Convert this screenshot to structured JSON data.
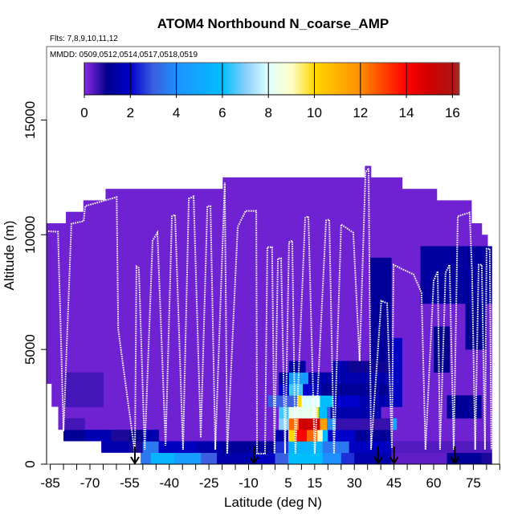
{
  "chart_data": {
    "type": "heatmap",
    "title": "ATOM4 Northbound N_coarse_AMP",
    "subtitle_flights": "Flts: 7,8,9,10,11,12",
    "subtitle_dates": "MMDD: 0509,0512,0514,0517,0518,0519",
    "xlabel": "Latitude (deg N)",
    "ylabel": "Altitude (m)",
    "xlim": [
      -86.4,
      84.9
    ],
    "ylim": [
      0,
      18200
    ],
    "xticks": [
      -85,
      -80,
      -75,
      -70,
      -65,
      -60,
      -55,
      -50,
      -45,
      -40,
      -35,
      -30,
      -25,
      -20,
      -15,
      -10,
      -5,
      0,
      5,
      10,
      15,
      20,
      25,
      30,
      35,
      40,
      45,
      50,
      55,
      60,
      65,
      70,
      75,
      80,
      85
    ],
    "xtick_labels": [
      "-85",
      "-70",
      "-55",
      "-40",
      "-25",
      "-10",
      "5",
      "15",
      "30",
      "45",
      "60",
      "75"
    ],
    "xtick_label_values": [
      -85,
      -70,
      -55,
      -40,
      -25,
      -10,
      5,
      15,
      30,
      45,
      60,
      75
    ],
    "yticks": [
      0,
      5000,
      10000,
      15000
    ],
    "ytick_labels": [
      "0",
      "5000",
      "10000",
      "15000"
    ],
    "colorbar": {
      "range": [
        0,
        16.3
      ],
      "ticks": [
        0,
        2,
        4,
        6,
        8,
        10,
        12,
        14,
        16
      ],
      "tick_labels": [
        "0",
        "2",
        "4",
        "6",
        "8",
        "10",
        "12",
        "14",
        "16"
      ],
      "placement": "top-inset"
    },
    "colorscale": [
      [
        0,
        "#8a2be2"
      ],
      [
        1,
        "#00008b"
      ],
      [
        2,
        "#0000cd"
      ],
      [
        3,
        "#3a5fe0"
      ],
      [
        4,
        "#1e90ff"
      ],
      [
        5,
        "#10a8ff"
      ],
      [
        6,
        "#00bfff"
      ],
      [
        7,
        "#87cefa"
      ],
      [
        8,
        "#e0ffff"
      ],
      [
        9,
        "#ffffc8"
      ],
      [
        10,
        "#ffd700"
      ],
      [
        12,
        "#ff8c00"
      ],
      [
        13.5,
        "#ff2000"
      ],
      [
        14,
        "#ff0000"
      ],
      [
        15,
        "#d00000"
      ],
      [
        16,
        "#b01515"
      ],
      [
        16.3,
        "#a52a2a"
      ]
    ],
    "default_value": 0.2,
    "coverage": [
      [
        -86.4,
        -84.5,
        3500,
        10500
      ],
      [
        -84.5,
        -82,
        2500,
        10500
      ],
      [
        -82,
        -80,
        1500,
        10500
      ],
      [
        -80,
        -79.1,
        1000,
        10500
      ],
      [
        -79.1,
        -72.5,
        1000,
        11000
      ],
      [
        -72.5,
        -65.7,
        1000,
        11500
      ],
      [
        -65.7,
        -64.1,
        500,
        11500
      ],
      [
        -64.1,
        -50.8,
        500,
        12000
      ],
      [
        -50.8,
        -19.8,
        0,
        12000
      ],
      [
        -19.8,
        34,
        0,
        12500
      ],
      [
        34,
        36.3,
        0,
        13000
      ],
      [
        36.3,
        48.1,
        0,
        12500
      ],
      [
        48.1,
        61.2,
        0,
        12000
      ],
      [
        61.2,
        74.3,
        0,
        11500
      ],
      [
        74.3,
        78.2,
        0,
        10500
      ],
      [
        78.2,
        80.4,
        0,
        10000
      ],
      [
        80.4,
        82,
        0,
        9500
      ]
    ],
    "cells": [
      [
        -50.8,
        -47,
        0,
        500,
        3.5
      ],
      [
        -47,
        -38,
        0,
        500,
        5.5
      ],
      [
        -38,
        -28,
        0,
        500,
        4.5
      ],
      [
        -28,
        -22,
        0,
        500,
        3
      ],
      [
        -22,
        -10,
        0,
        500,
        1.5
      ],
      [
        -10,
        0,
        0,
        500,
        1.8
      ],
      [
        0,
        5,
        0,
        500,
        3
      ],
      [
        5,
        18,
        0,
        500,
        6
      ],
      [
        18,
        25,
        0,
        500,
        4
      ],
      [
        25,
        30,
        0,
        500,
        2.5
      ],
      [
        30,
        44,
        0,
        500,
        1.5
      ],
      [
        44,
        65,
        0,
        500,
        0.3
      ],
      [
        65,
        78,
        0,
        500,
        1.2
      ],
      [
        78,
        82,
        0,
        500,
        0.8
      ],
      [
        -65.7,
        -55,
        500,
        1000,
        1.5
      ],
      [
        -55,
        -50,
        500,
        1000,
        0.8
      ],
      [
        -50,
        -44,
        500,
        1000,
        3.5
      ],
      [
        -44,
        -30,
        500,
        1000,
        1.8
      ],
      [
        -30,
        -20,
        500,
        1000,
        1.5
      ],
      [
        -20,
        0,
        500,
        1000,
        1.2
      ],
      [
        0,
        5,
        500,
        1000,
        2.5
      ],
      [
        5,
        18,
        500,
        1000,
        5.5
      ],
      [
        18,
        28,
        500,
        1000,
        3.5
      ],
      [
        28,
        44,
        500,
        1000,
        1.8
      ],
      [
        44,
        82,
        500,
        1000,
        0.4
      ],
      [
        -80,
        -72,
        1000,
        1500,
        1.2
      ],
      [
        -72,
        -62,
        1000,
        1500,
        1.6
      ],
      [
        -62,
        -55,
        1000,
        1500,
        0.8
      ],
      [
        -55,
        -50,
        1000,
        1500,
        1.0
      ],
      [
        -50,
        -44,
        1000,
        1500,
        1.5
      ],
      [
        0,
        5,
        1000,
        1500,
        1.5
      ],
      [
        5,
        7.5,
        1000,
        1500,
        10
      ],
      [
        7.5,
        12,
        1000,
        1500,
        14
      ],
      [
        12,
        16,
        1000,
        1500,
        12.5
      ],
      [
        16,
        18,
        1000,
        1500,
        9
      ],
      [
        18,
        20,
        1000,
        1500,
        6
      ],
      [
        20,
        30,
        1000,
        1500,
        2
      ],
      [
        30,
        44,
        1000,
        1500,
        1.2
      ],
      [
        -80,
        -72,
        1500,
        2000,
        0.5
      ],
      [
        1.4,
        5.3,
        1500,
        2000,
        7
      ],
      [
        5.3,
        9,
        1500,
        2000,
        12.5
      ],
      [
        9,
        17,
        1500,
        2000,
        15
      ],
      [
        17,
        19.6,
        1500,
        2000,
        11.5
      ],
      [
        19.6,
        23,
        1500,
        2000,
        4
      ],
      [
        23,
        44,
        1500,
        2000,
        0.6
      ],
      [
        44.5,
        46,
        1500,
        2000,
        5
      ],
      [
        1.4,
        5,
        2000,
        2500,
        6.5
      ],
      [
        5,
        5.3,
        2000,
        2500,
        10
      ],
      [
        5.3,
        15.5,
        2000,
        2500,
        8.3
      ],
      [
        15.5,
        16.5,
        2000,
        2500,
        10
      ],
      [
        16.5,
        19.6,
        2000,
        2500,
        6
      ],
      [
        19.6,
        21,
        2000,
        2500,
        3
      ],
      [
        21,
        40,
        2000,
        2500,
        1.5
      ],
      [
        -2.6,
        8.5,
        2500,
        3000,
        3
      ],
      [
        8.5,
        10,
        2500,
        3000,
        10
      ],
      [
        10,
        17,
        2500,
        3000,
        8
      ],
      [
        17,
        22,
        2500,
        3000,
        6
      ],
      [
        22,
        32,
        2500,
        3000,
        2
      ],
      [
        32,
        44,
        2500,
        3000,
        1.5
      ],
      [
        -80,
        -65,
        2500,
        4000,
        0.5
      ],
      [
        1.4,
        5.3,
        3000,
        3500,
        2
      ],
      [
        5.3,
        10.5,
        3000,
        3500,
        6.5
      ],
      [
        10.5,
        17.5,
        3000,
        3500,
        2
      ],
      [
        17.5,
        44,
        3000,
        3500,
        1.2
      ],
      [
        1.4,
        5.3,
        3500,
        4000,
        1.3
      ],
      [
        5.3,
        12.6,
        3500,
        4000,
        4.5
      ],
      [
        12.6,
        44,
        3500,
        4000,
        1.5
      ],
      [
        44.5,
        46,
        3500,
        4000,
        5.5
      ],
      [
        5.3,
        11.5,
        4000,
        4500,
        1.3
      ],
      [
        21.7,
        27.8,
        4000,
        4500,
        1.5
      ],
      [
        27.8,
        44,
        4000,
        4500,
        0.9
      ],
      [
        36,
        44,
        4500,
        9000,
        1.2
      ],
      [
        44,
        48,
        2500,
        5500,
        1.8
      ],
      [
        55,
        82,
        7000,
        9500,
        1.3
      ],
      [
        65,
        78,
        2000,
        3000,
        1.2
      ],
      [
        60,
        66,
        4000,
        6000,
        1.0
      ],
      [
        72,
        80,
        5000,
        7000,
        1.1
      ]
    ],
    "flight_track": [
      [
        -85.8,
        10150
      ],
      [
        -82.1,
        10130
      ],
      [
        -80.0,
        1440
      ],
      [
        -77.0,
        10480
      ],
      [
        -72.4,
        10590
      ],
      [
        -71.8,
        11250
      ],
      [
        -59.9,
        11640
      ],
      [
        -59.3,
        5890
      ],
      [
        -53.0,
        460
      ],
      [
        -52.4,
        8620
      ],
      [
        -51.5,
        8550
      ],
      [
        -49.3,
        630
      ],
      [
        -46.3,
        9740
      ],
      [
        -44.5,
        10090
      ],
      [
        -41.4,
        810
      ],
      [
        -39.0,
        10800
      ],
      [
        -37.8,
        10870
      ],
      [
        -34.8,
        630
      ],
      [
        -32.6,
        11570
      ],
      [
        -30.8,
        11670
      ],
      [
        -28.1,
        1160
      ],
      [
        -25.6,
        11250
      ],
      [
        -24.4,
        11250
      ],
      [
        -22.6,
        630
      ],
      [
        -19.0,
        12270
      ],
      [
        -18.1,
        460
      ],
      [
        -14.1,
        10340
      ],
      [
        -11.1,
        11040
      ],
      [
        -7.1,
        11040
      ],
      [
        -6.8,
        460
      ],
      [
        -3.8,
        460
      ],
      [
        -2.9,
        9460
      ],
      [
        -1.1,
        9460
      ],
      [
        -0.2,
        460
      ],
      [
        1.1,
        8970
      ],
      [
        2.3,
        8970
      ],
      [
        3.8,
        460
      ],
      [
        5.3,
        9670
      ],
      [
        6.5,
        9740
      ],
      [
        7.7,
        460
      ],
      [
        11.4,
        10730
      ],
      [
        12.6,
        10800
      ],
      [
        15.0,
        460
      ],
      [
        19.3,
        10620
      ],
      [
        20.5,
        10660
      ],
      [
        22.3,
        460
      ],
      [
        25.0,
        10450
      ],
      [
        29.6,
        10090
      ],
      [
        32.0,
        4490
      ],
      [
        34.2,
        12720
      ],
      [
        35.4,
        12900
      ],
      [
        36.3,
        630
      ],
      [
        40.2,
        7120
      ],
      [
        42.4,
        7010
      ],
      [
        44.2,
        700
      ],
      [
        44.8,
        8690
      ],
      [
        47.8,
        8520
      ],
      [
        52.4,
        8270
      ],
      [
        55.4,
        7470
      ],
      [
        56.9,
        630
      ],
      [
        60.0,
        7990
      ],
      [
        61.5,
        8410
      ],
      [
        62.4,
        630
      ],
      [
        64.5,
        8340
      ],
      [
        66.0,
        8690
      ],
      [
        67.6,
        630
      ],
      [
        69.1,
        10800
      ],
      [
        73.6,
        10970
      ],
      [
        74.5,
        8340
      ],
      [
        75.7,
        630
      ],
      [
        77.0,
        8690
      ],
      [
        78.2,
        8690
      ],
      [
        79.4,
        630
      ],
      [
        80.0,
        9390
      ],
      [
        81.2,
        9390
      ],
      [
        81.8,
        630
      ]
    ],
    "arrow_markers_lat": [
      -53,
      -8,
      39,
      45,
      68
    ]
  }
}
